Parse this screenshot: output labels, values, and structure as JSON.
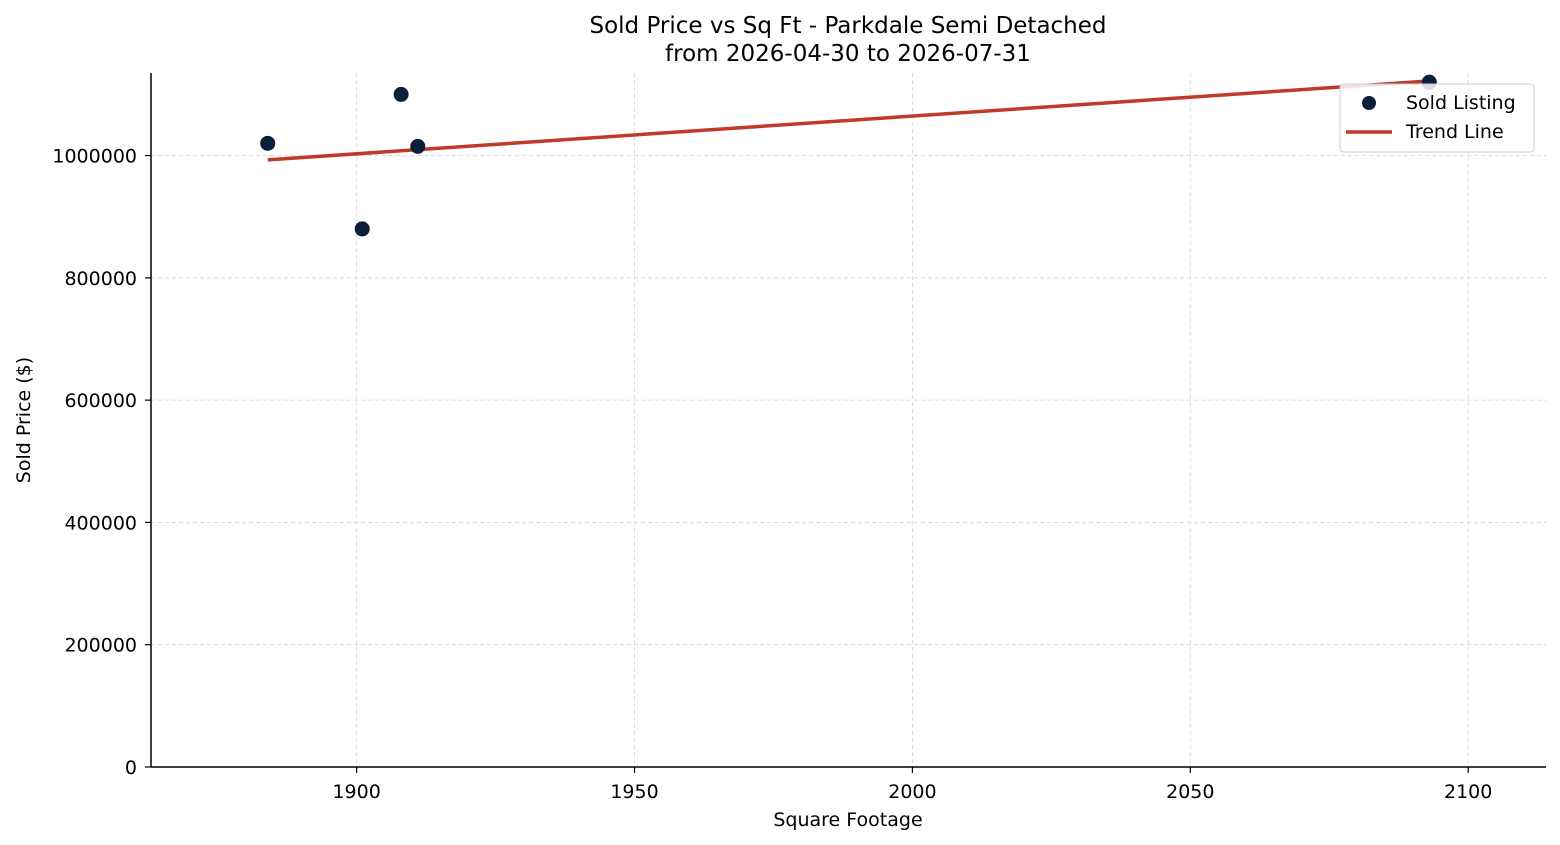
{
  "chart_data": {
    "type": "scatter",
    "title": "Sold Price vs Sq Ft - Parkdale Semi Detached",
    "subtitle": "from 2026-04-30 to 2026-07-31",
    "xlabel": "Square Footage",
    "ylabel": "Sold Price ($)",
    "xlim": [
      1863,
      2114
    ],
    "ylim": [
      0,
      1135000
    ],
    "x_ticks": [
      1900,
      1950,
      2000,
      2050,
      2100
    ],
    "y_ticks": [
      0,
      200000,
      400000,
      600000,
      800000,
      1000000
    ],
    "grid": true,
    "legend_position": "top-right",
    "series": [
      {
        "name": "Sold Listing",
        "kind": "scatter",
        "color": "#0b1f3a",
        "points": [
          {
            "x": 1884,
            "y": 1020000
          },
          {
            "x": 1901,
            "y": 880000
          },
          {
            "x": 1908,
            "y": 1100000
          },
          {
            "x": 1911,
            "y": 1015000
          },
          {
            "x": 2093,
            "y": 1120000
          }
        ]
      },
      {
        "name": "Trend Line",
        "kind": "line",
        "color": "#c0392b",
        "points": [
          {
            "x": 1884,
            "y": 993000
          },
          {
            "x": 2093,
            "y": 1122000
          }
        ]
      }
    ]
  }
}
